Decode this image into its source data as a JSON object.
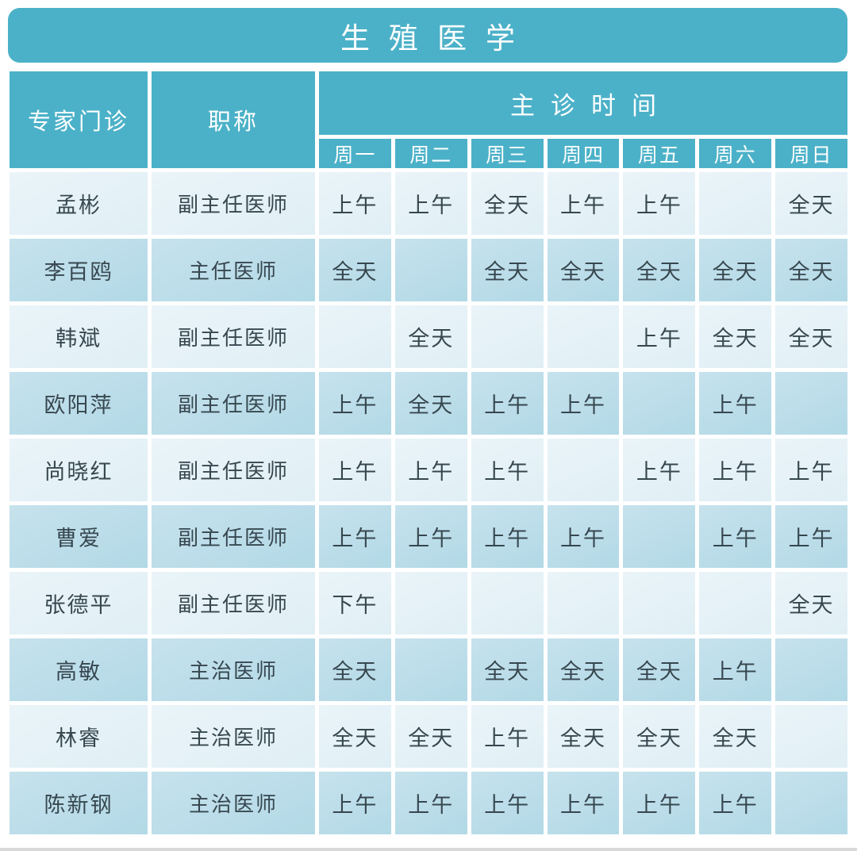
{
  "title": "生殖医学",
  "table": {
    "expert_column_header": "专家门诊",
    "rank_column_header": "职称",
    "time_group_header": "主诊时间",
    "days": [
      "周一",
      "周二",
      "周三",
      "周四",
      "周五",
      "周六",
      "周日"
    ],
    "legend": {
      "morning": "上午",
      "afternoon": "下午",
      "all_day": "全天"
    },
    "rows": [
      {
        "name": "孟彬",
        "rank": "副主任医师",
        "schedule": [
          "上午",
          "上午",
          "全天",
          "上午",
          "上午",
          "",
          "全天"
        ]
      },
      {
        "name": "李百鸥",
        "rank": "主任医师",
        "schedule": [
          "全天",
          "",
          "全天",
          "全天",
          "全天",
          "全天",
          "全天"
        ]
      },
      {
        "name": "韩斌",
        "rank": "副主任医师",
        "schedule": [
          "",
          "全天",
          "",
          "",
          "上午",
          "全天",
          "全天"
        ]
      },
      {
        "name": "欧阳萍",
        "rank": "副主任医师",
        "schedule": [
          "上午",
          "全天",
          "上午",
          "上午",
          "",
          "上午",
          ""
        ]
      },
      {
        "name": "尚晓红",
        "rank": "副主任医师",
        "schedule": [
          "上午",
          "上午",
          "上午",
          "",
          "上午",
          "上午",
          "上午"
        ]
      },
      {
        "name": "曹爱",
        "rank": "副主任医师",
        "schedule": [
          "上午",
          "上午",
          "上午",
          "上午",
          "",
          "上午",
          "上午"
        ]
      },
      {
        "name": "张德平",
        "rank": "副主任医师",
        "schedule": [
          "下午",
          "",
          "",
          "",
          "",
          "",
          "全天"
        ]
      },
      {
        "name": "高敏",
        "rank": "主治医师",
        "schedule": [
          "全天",
          "",
          "全天",
          "全天",
          "全天",
          "上午",
          ""
        ]
      },
      {
        "name": "林睿",
        "rank": "主治医师",
        "schedule": [
          "全天",
          "全天",
          "上午",
          "全天",
          "全天",
          "全天",
          ""
        ]
      },
      {
        "name": "陈新钢",
        "rank": "主治医师",
        "schedule": [
          "上午",
          "上午",
          "上午",
          "上午",
          "上午",
          "上午",
          ""
        ]
      }
    ]
  },
  "colors": {
    "header_teal": "#4bb1c8",
    "row_light": "#e5f1f7",
    "row_dark": "#bcdde9",
    "text_dark": "#37474f"
  }
}
